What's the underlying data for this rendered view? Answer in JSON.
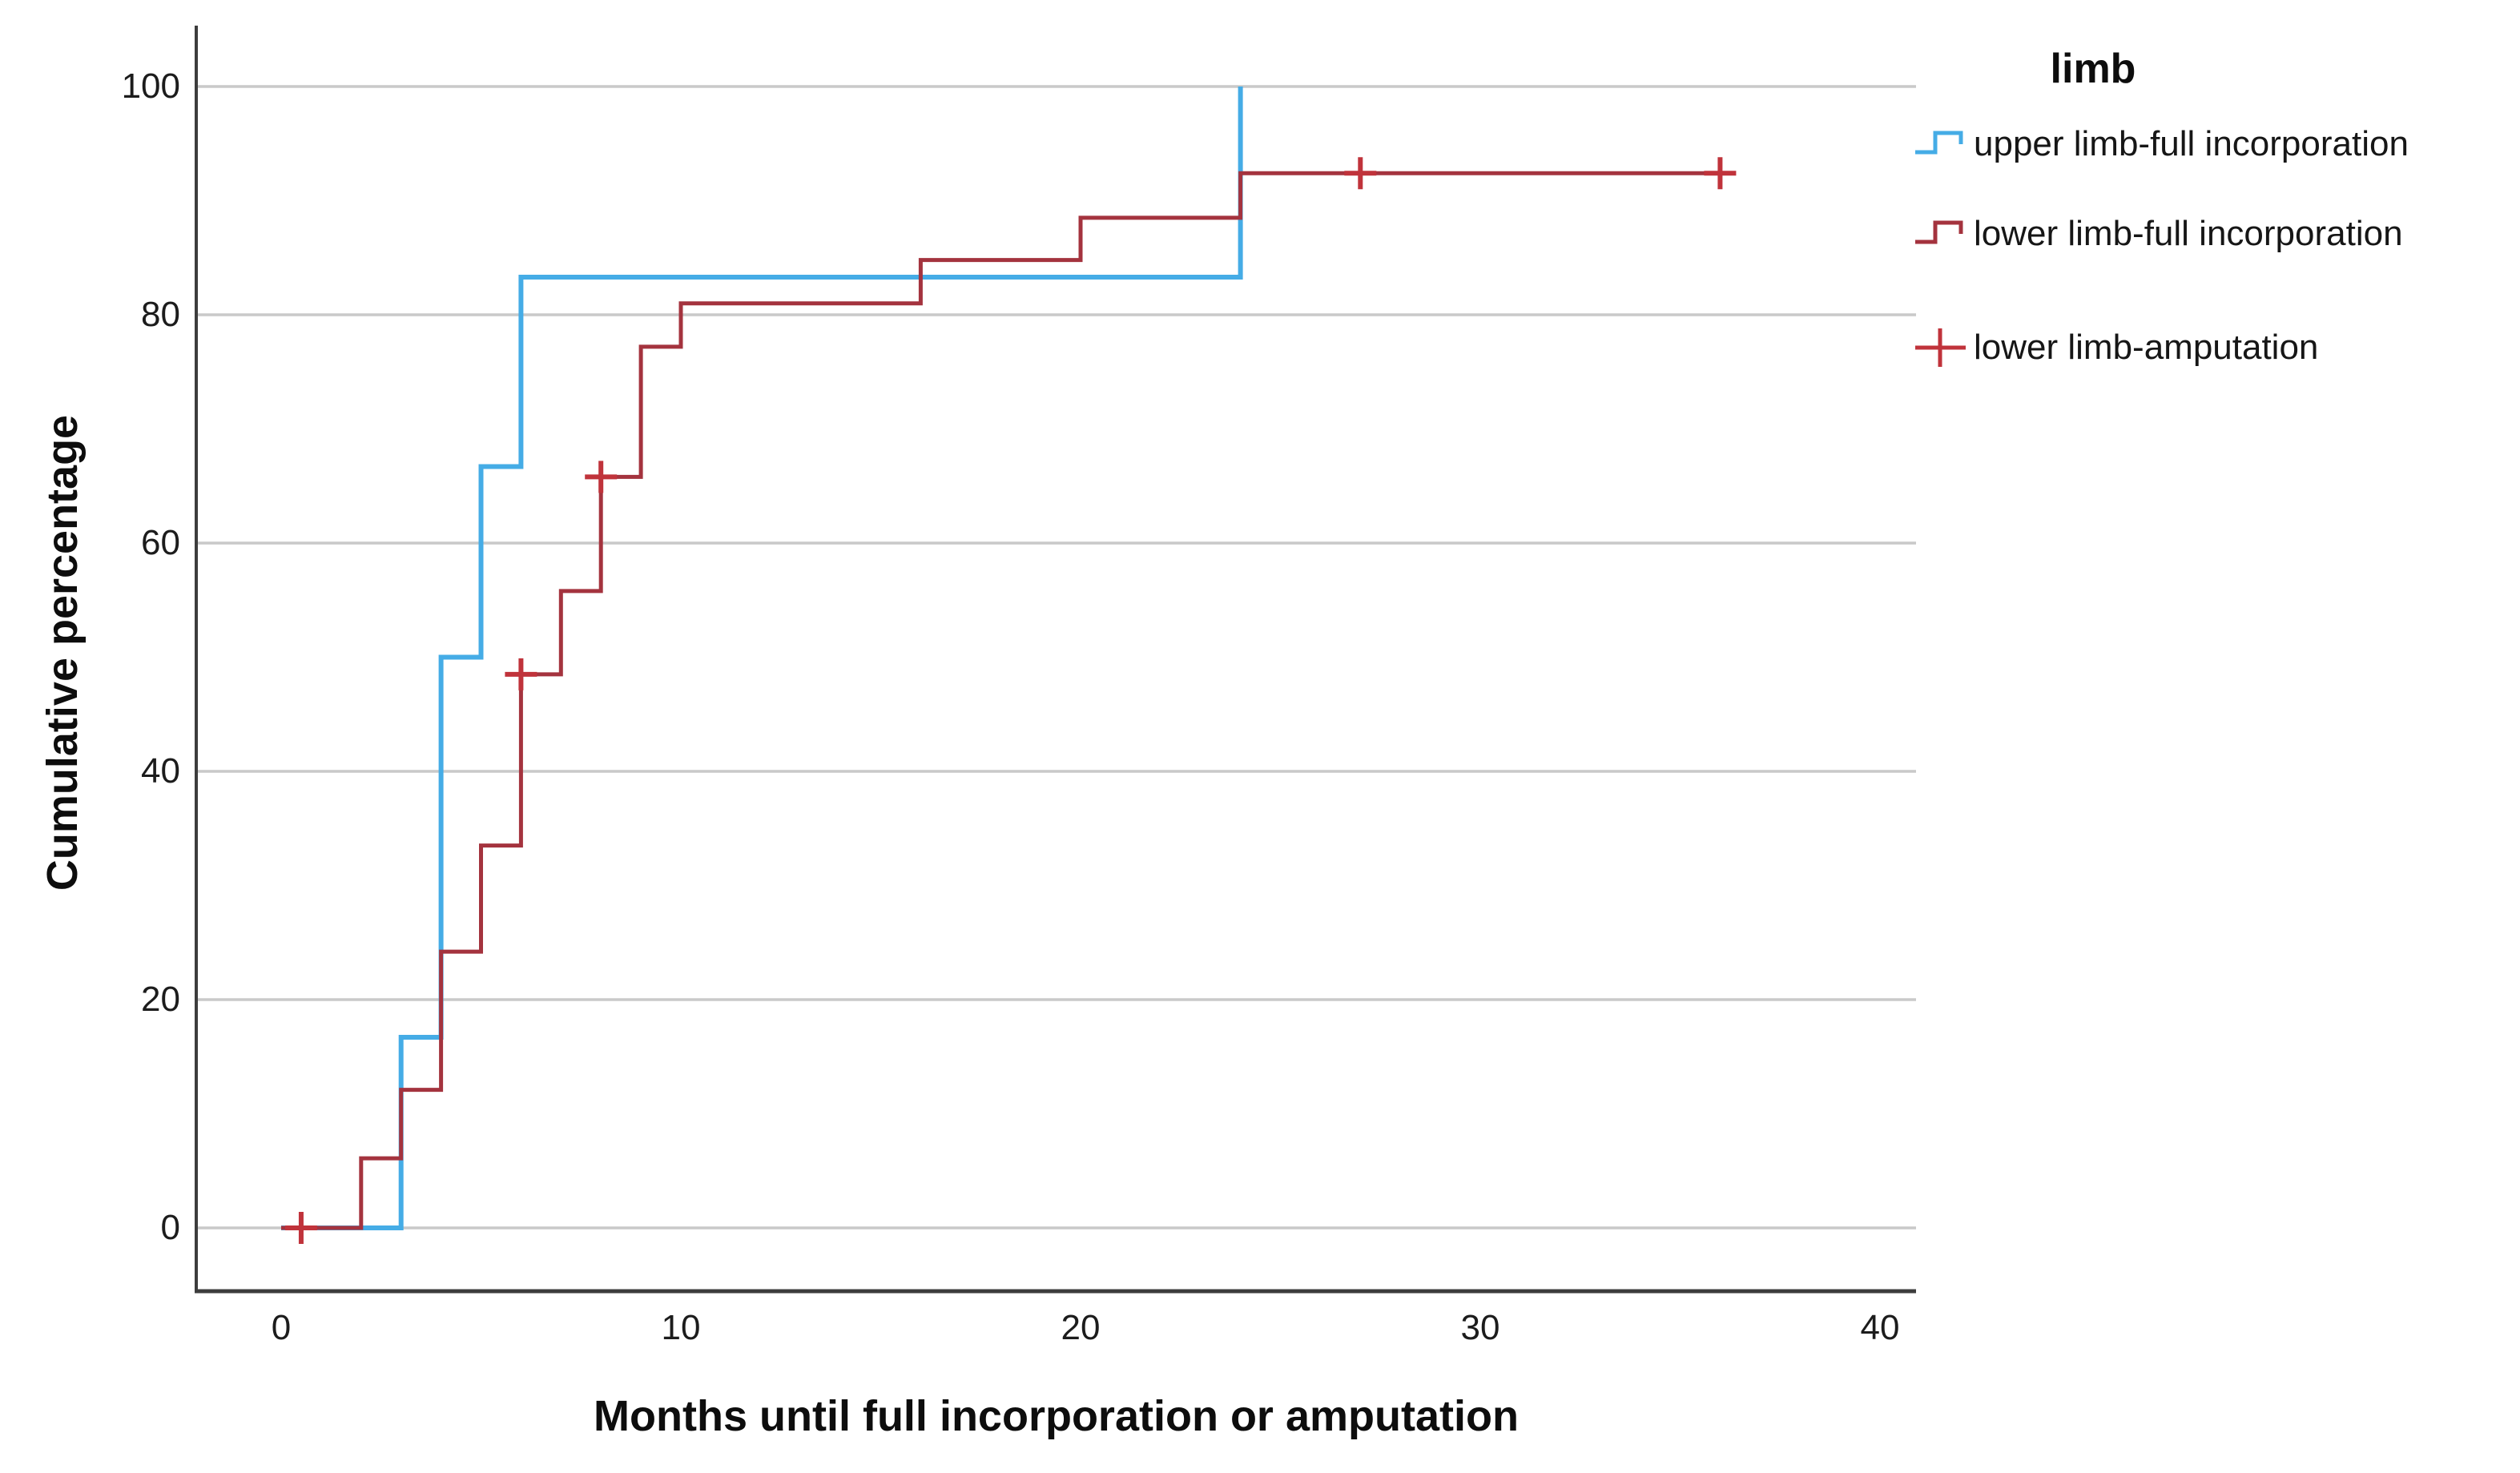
{
  "figure": {
    "background": "#ffffff",
    "ylabel": "Cumulative percentage",
    "xlabel": "Months until full incorporation or amputation"
  },
  "legend": {
    "title": "limb",
    "entries": [
      {
        "label": "upper limb-full incorporation"
      },
      {
        "label": "lower limb-full incorporation"
      },
      {
        "label": "lower limb-amputation"
      }
    ]
  },
  "colors": {
    "upper_limb": "#45ACE6",
    "lower_limb_full": "#A4333E",
    "lower_limb_amputation": "#C0333B",
    "gridline": "#C9C9C9",
    "axis": "#3D3D3D",
    "text": "#111111"
  },
  "chart_data": {
    "type": "line",
    "subtype": "cumulative-incidence-step (Kaplan-Meier style)",
    "title": "limb",
    "xlabel": "Months until full incorporation or amputation",
    "ylabel": "Cumulative percentage",
    "xlim": [
      -2.2,
      43
    ],
    "ylim": [
      -5.5,
      105.5
    ],
    "x_ticks": [
      0,
      10,
      20,
      30,
      40
    ],
    "y_ticks": [
      0,
      20,
      40,
      60,
      80,
      100
    ],
    "grid": "horizontal gridlines only",
    "legend_position": "right",
    "series": [
      {
        "name": "upper limb-full incorporation",
        "color": "#45ACE6",
        "start": [
          0,
          0
        ],
        "steps": [
          [
            3,
            16.7
          ],
          [
            4,
            50
          ],
          [
            5,
            66.7
          ],
          [
            6,
            83.3
          ],
          [
            24,
            100
          ]
        ],
        "end_x": 24
      },
      {
        "name": "lower limb-full incorporation",
        "color": "#A4333E",
        "start": [
          0,
          0
        ],
        "steps": [
          [
            2,
            6.1
          ],
          [
            3,
            12.1
          ],
          [
            4,
            24.2
          ],
          [
            5,
            33.5
          ],
          [
            6,
            48.5
          ],
          [
            7,
            55.8
          ],
          [
            8,
            65.8
          ],
          [
            9,
            77.2
          ],
          [
            10,
            81.0
          ],
          [
            16,
            84.8
          ],
          [
            20,
            88.5
          ],
          [
            24,
            92.4
          ]
        ],
        "end_x": 36
      },
      {
        "name": "lower limb-amputation",
        "color": "#C0333B",
        "marker": "plus (censor mark)",
        "markers": [
          [
            0.5,
            0
          ],
          [
            6,
            48.5
          ],
          [
            8,
            65.8
          ],
          [
            27,
            92.4
          ],
          [
            36,
            92.4
          ]
        ]
      }
    ]
  }
}
